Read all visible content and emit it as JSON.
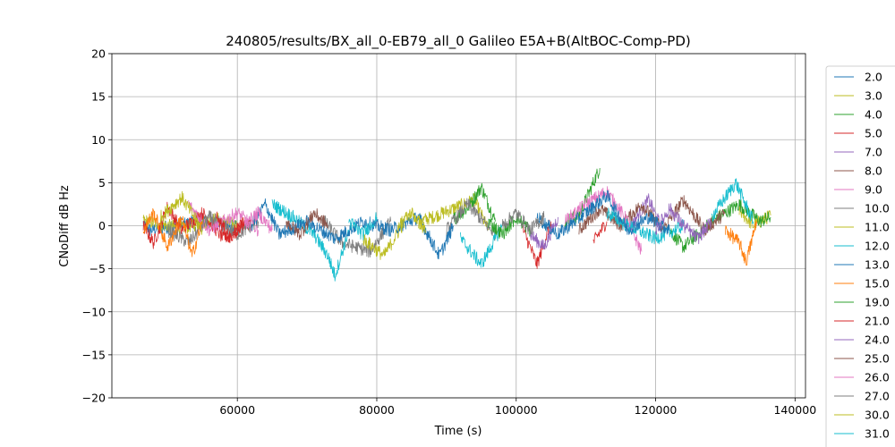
{
  "chart_data": {
    "type": "line",
    "title": "240805/results/BX_all_0-EB79_all_0 Galileo E5A+B(AltBOC-Comp-PD)",
    "xlabel": "Time (s)",
    "ylabel": "CNoDiff dB Hz",
    "xlim": [
      42000,
      141500
    ],
    "ylim": [
      -20,
      20
    ],
    "xticks": [
      60000,
      80000,
      100000,
      120000,
      140000
    ],
    "xtick_labels": [
      "60000",
      "80000",
      "100000",
      "120000",
      "140000"
    ],
    "yticks": [
      20,
      15,
      10,
      5,
      0,
      -5,
      -10,
      -15,
      -20
    ],
    "ytick_labels": [
      "20",
      "15",
      "10",
      "5",
      "0",
      "−5",
      "−10",
      "−15",
      "−20"
    ],
    "grid": true,
    "legend_position": "right, outside plot (clipped)",
    "series": [
      {
        "name": "2.0",
        "color": "#1f77b4",
        "segments": [
          [
            [
              46500,
              0.3
            ],
            [
              47500,
              -0.5
            ],
            [
              55000,
              0.6
            ],
            [
              60000,
              -0.2
            ]
          ]
        ]
      },
      {
        "name": "3.0",
        "color": "#bcbd22",
        "segments": [
          [
            [
              46500,
              0.6
            ],
            [
              52000,
              -0.3
            ],
            [
              57000,
              0.8
            ],
            [
              60000,
              0.0
            ]
          ],
          [
            [
              86000,
              0.5
            ],
            [
              88000,
              1.0
            ],
            [
              94000,
              3.0
            ],
            [
              96000,
              -0.5
            ]
          ],
          [
            [
              132000,
              1.8
            ],
            [
              134000,
              0.0
            ],
            [
              136500,
              1.2
            ]
          ]
        ]
      },
      {
        "name": "4.0",
        "color": "#2ca02c",
        "segments": [
          [
            [
              91000,
              0.8
            ],
            [
              93000,
              2.0
            ],
            [
              95000,
              4.5
            ],
            [
              97000,
              0.5
            ]
          ],
          [
            [
              107000,
              0.5
            ],
            [
              109000,
              1.2
            ],
            [
              112000,
              6.7
            ]
          ],
          [
            [
              122000,
              -0.5
            ],
            [
              124000,
              -2.5
            ],
            [
              128000,
              0.5
            ],
            [
              132000,
              2.5
            ],
            [
              135000,
              0.5
            ],
            [
              136500,
              1.0
            ]
          ]
        ]
      },
      {
        "name": "5.0",
        "color": "#d62728",
        "segments": [
          [
            [
              46500,
              0.0
            ],
            [
              48000,
              -2.0
            ],
            [
              50000,
              2.2
            ],
            [
              52000,
              -0.5
            ],
            [
              55000,
              1.5
            ],
            [
              58000,
              -1.5
            ],
            [
              62000,
              0.5
            ]
          ],
          [
            [
              101000,
              -0.5
            ],
            [
              103000,
              -4.5
            ],
            [
              105000,
              0.5
            ]
          ],
          [
            [
              111000,
              -2.0
            ],
            [
              113000,
              0.5
            ]
          ]
        ]
      },
      {
        "name": "7.0",
        "color": "#9467bd",
        "segments": [
          [
            [
              102000,
              -1.0
            ],
            [
              104000,
              -2.5
            ],
            [
              106000,
              1.0
            ]
          ],
          [
            [
              116000,
              -0.5
            ],
            [
              119000,
              3.0
            ],
            [
              121000,
              -0.5
            ]
          ]
        ]
      },
      {
        "name": "8.0",
        "color": "#8c564b",
        "segments": [
          [
            [
              109000,
              -0.5
            ],
            [
              112000,
              2.0
            ],
            [
              115000,
              0.0
            ],
            [
              118000,
              2.5
            ],
            [
              121000,
              -0.5
            ],
            [
              124000,
              3.0
            ],
            [
              127000,
              -0.5
            ],
            [
              130000,
              1.5
            ]
          ]
        ]
      },
      {
        "name": "9.0",
        "color": "#e377c2",
        "segments": [
          [
            [
              53000,
              2.5
            ],
            [
              56000,
              -0.5
            ],
            [
              60000,
              1.5
            ],
            [
              63000,
              -0.5
            ]
          ],
          [
            [
              107000,
              0.5
            ],
            [
              110000,
              2.5
            ],
            [
              113000,
              4.0
            ],
            [
              116000,
              0.5
            ],
            [
              118000,
              -3.0
            ]
          ]
        ]
      },
      {
        "name": "10.0",
        "color": "#7f7f7f",
        "segments": [
          [
            [
              50000,
              -0.5
            ],
            [
              53000,
              -2.0
            ],
            [
              56000,
              1.0
            ],
            [
              60000,
              -1.0
            ],
            [
              63000,
              0.5
            ]
          ],
          [
            [
              72000,
              1.0
            ],
            [
              75000,
              -2.0
            ],
            [
              79000,
              -3.0
            ],
            [
              82000,
              0.5
            ]
          ],
          [
            [
              90000,
              -0.5
            ],
            [
              93000,
              2.5
            ],
            [
              97000,
              -1.0
            ]
          ]
        ]
      },
      {
        "name": "11.0",
        "color": "#bcbd22",
        "segments": [
          [
            [
              49000,
              1.0
            ],
            [
              52000,
              3.3
            ],
            [
              55000,
              -0.5
            ]
          ],
          [
            [
              78000,
              -1.5
            ],
            [
              81000,
              -3.5
            ],
            [
              84000,
              0.5
            ]
          ]
        ]
      },
      {
        "name": "12.0",
        "color": "#17becf",
        "segments": [
          [
            [
              65000,
              2.5
            ],
            [
              68000,
              1.0
            ],
            [
              71000,
              -1.0
            ],
            [
              73000,
              -3.5
            ],
            [
              74000,
              -5.8
            ],
            [
              76000,
              -0.5
            ]
          ],
          [
            [
              92000,
              -1.5
            ],
            [
              95000,
              -4.5
            ],
            [
              98000,
              0.0
            ]
          ],
          [
            [
              113000,
              1.5
            ],
            [
              116000,
              0.0
            ],
            [
              120000,
              -1.5
            ],
            [
              124000,
              0.0
            ]
          ],
          [
            [
              128000,
              1.0
            ],
            [
              131500,
              5.0
            ],
            [
              134000,
              0.5
            ]
          ]
        ]
      },
      {
        "name": "13.0",
        "color": "#1f77b4",
        "segments": [
          [
            [
              62000,
              0.0
            ],
            [
              64000,
              2.5
            ],
            [
              66000,
              -1.0
            ],
            [
              70000,
              0.5
            ],
            [
              74000,
              -1.5
            ],
            [
              78000,
              0.5
            ],
            [
              82000,
              -0.5
            ],
            [
              86000,
              1.0
            ],
            [
              89000,
              -3.5
            ],
            [
              91000,
              0.0
            ]
          ],
          [
            [
              103000,
              1.0
            ],
            [
              106000,
              -1.0
            ],
            [
              110000,
              1.5
            ],
            [
              113000,
              3.5
            ],
            [
              116000,
              -0.5
            ],
            [
              119000,
              1.0
            ],
            [
              122000,
              -0.5
            ]
          ]
        ]
      },
      {
        "name": "15.0",
        "color": "#ff7f0e",
        "segments": [
          [
            [
              46500,
              -0.5
            ],
            [
              48000,
              1.5
            ],
            [
              50000,
              -2.5
            ],
            [
              52000,
              1.0
            ],
            [
              53500,
              -3.5
            ],
            [
              55000,
              0.5
            ]
          ],
          [
            [
              130000,
              -0.5
            ],
            [
              132000,
              -2.0
            ],
            [
              133000,
              -4.2
            ],
            [
              134500,
              0.5
            ]
          ]
        ]
      },
      {
        "name": "19.0",
        "color": "#2ca02c",
        "segments": [
          [
            [
              96000,
              0.5
            ],
            [
              98000,
              -1.0
            ],
            [
              100000,
              1.0
            ],
            [
              102000,
              -0.5
            ]
          ]
        ]
      },
      {
        "name": "21.0",
        "color": "#d62728",
        "segments": [
          [
            [
              57000,
              1.0
            ],
            [
              59000,
              -1.5
            ],
            [
              61000,
              0.5
            ]
          ]
        ]
      },
      {
        "name": "24.0",
        "color": "#9467bd",
        "segments": [
          [
            [
              120000,
              -0.5
            ],
            [
              122000,
              2.0
            ],
            [
              124000,
              0.0
            ],
            [
              126000,
              -1.5
            ],
            [
              128000,
              0.5
            ]
          ]
        ]
      },
      {
        "name": "25.0",
        "color": "#8c564b",
        "segments": [
          [
            [
              67000,
              0.5
            ],
            [
              69000,
              -1.0
            ],
            [
              71000,
              1.5
            ],
            [
              73000,
              0.0
            ]
          ]
        ]
      },
      {
        "name": "26.0",
        "color": "#e377c2",
        "segments": [
          [
            [
              61000,
              0.0
            ],
            [
              63000,
              1.5
            ],
            [
              65000,
              -0.5
            ]
          ]
        ]
      },
      {
        "name": "27.0",
        "color": "#7f7f7f",
        "segments": [
          [
            [
              98000,
              0.0
            ],
            [
              100000,
              1.5
            ],
            [
              102000,
              -0.5
            ],
            [
              104000,
              1.0
            ]
          ]
        ]
      },
      {
        "name": "30.0",
        "color": "#bcbd22",
        "segments": [
          [
            [
              83000,
              0.0
            ],
            [
              85000,
              1.5
            ],
            [
              87000,
              -0.5
            ]
          ]
        ]
      },
      {
        "name": "31.0",
        "color": "#17becf",
        "segments": [
          [
            [
              76000,
              0.5
            ],
            [
              78000,
              -1.0
            ],
            [
              80000,
              1.0
            ]
          ]
        ]
      }
    ]
  }
}
